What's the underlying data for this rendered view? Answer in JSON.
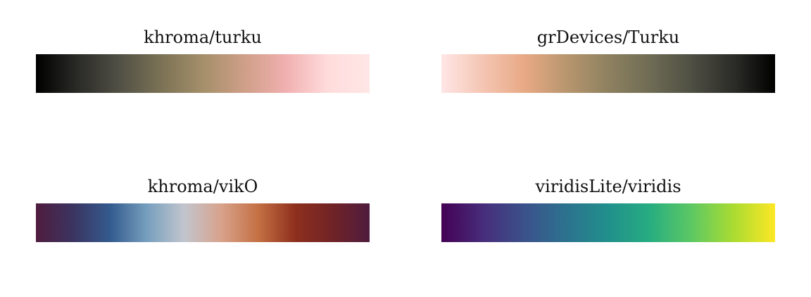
{
  "palettes": [
    {
      "title": "khroma/turku",
      "colors": [
        "#000000",
        "#2a2a27",
        "#515045",
        "#7b7255",
        "#a48f6a",
        "#cf9f88",
        "#f1b0b0",
        "#ffdcdc",
        "#ffe6e6"
      ]
    },
    {
      "title": "grDevices/Turku",
      "colors": [
        "#ffe6e6",
        "#f4c5b2",
        "#e8a985",
        "#b8966e",
        "#8e8160",
        "#6f6c54",
        "#4e4f43",
        "#2c2c28",
        "#000000"
      ]
    },
    {
      "title": "khroma/vikO",
      "colors": [
        "#4f1c3e",
        "#3b3460",
        "#335b8e",
        "#779fbe",
        "#c2c5ce",
        "#d8a28b",
        "#c47043",
        "#8e2f1d",
        "#702326",
        "#4f1c3e"
      ]
    },
    {
      "title": "viridisLite/viridis",
      "colors": [
        "#440154",
        "#472d7b",
        "#3b528b",
        "#2c728e",
        "#21908c",
        "#27ad81",
        "#5dc863",
        "#aadc32",
        "#fde725"
      ]
    }
  ]
}
